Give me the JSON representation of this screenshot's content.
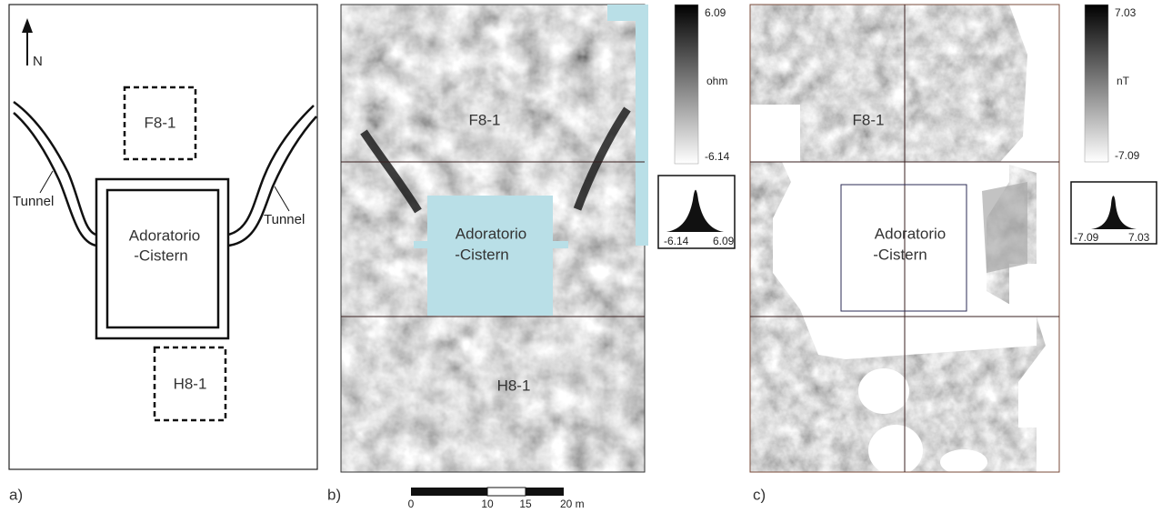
{
  "panels": [
    {
      "label": "a)",
      "north": "N",
      "tunnels": [
        "Tunnel",
        "Tunnel"
      ],
      "blocks": [
        "F8-1",
        "H8-1"
      ],
      "cistern": [
        "Adoratorio",
        "-Cistern"
      ]
    },
    {
      "label": "b)",
      "blocks": [
        "F8-1",
        "H8-1"
      ],
      "cistern": [
        "Adoratorio",
        "-Cistern"
      ],
      "colorbar": {
        "max": "6.09",
        "unit": "ohm",
        "min": "-6.14"
      },
      "histogram": {
        "min": "-6.14",
        "max": "6.09"
      }
    },
    {
      "label": "c)",
      "blocks": [
        "F8-1"
      ],
      "cistern": [
        "Adoratorio",
        "-Cistern"
      ],
      "colorbar": {
        "max": "7.03",
        "unit": "nT",
        "min": "-7.09"
      },
      "histogram": {
        "min": "-7.09",
        "max": "7.03"
      }
    }
  ],
  "scale_bar": {
    "ticks": [
      "0",
      "10",
      "15",
      "20 m"
    ]
  }
}
